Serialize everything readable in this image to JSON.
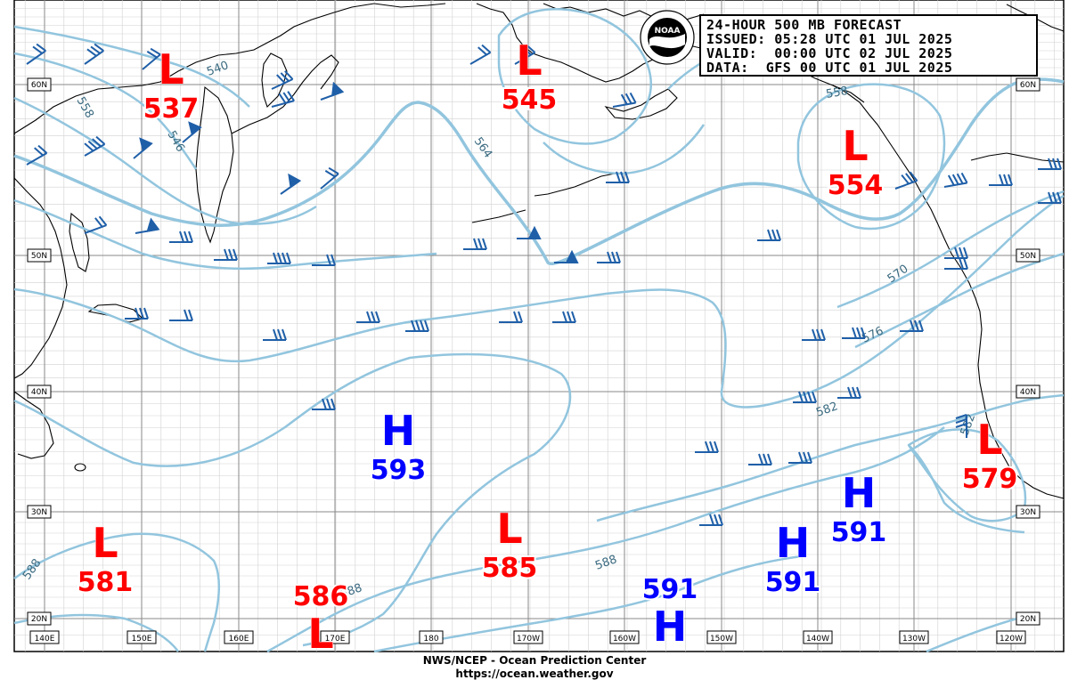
{
  "header": {
    "title": "24-HOUR 500 MB FORECAST",
    "issued": "ISSUED: 05:28 UTC 01 JUL 2025",
    "valid": "VALID:  00:00 UTC 02 JUL 2025",
    "data": "DATA:  GFS 00 UTC 01 JUL 2025"
  },
  "logo": {
    "name": "noaa-logo",
    "text": "NOAA"
  },
  "footer": {
    "org": "NWS/NCEP - Ocean Prediction Center",
    "url": "https://ocean.weather.gov"
  },
  "longitude_labels": [
    "140E",
    "150E",
    "160E",
    "170E",
    "180",
    "170W",
    "160W",
    "150W",
    "140W",
    "130W",
    "120W"
  ],
  "latitude_labels": [
    "60N",
    "50N",
    "40N",
    "30N",
    "20N"
  ],
  "contour_labels": [
    "540",
    "546",
    "558",
    "558",
    "564",
    "570",
    "576",
    "582",
    "582",
    "588",
    "588",
    "588"
  ],
  "pressure_systems": [
    {
      "type": "L",
      "value": "537",
      "color": "#ff0000"
    },
    {
      "type": "L",
      "value": "545",
      "color": "#ff0000"
    },
    {
      "type": "L",
      "value": "554",
      "color": "#ff0000"
    },
    {
      "type": "H",
      "value": "593",
      "color": "#0000ff"
    },
    {
      "type": "L",
      "value": "579",
      "color": "#ff0000"
    },
    {
      "type": "H",
      "value": "591",
      "color": "#0000ff"
    },
    {
      "type": "L",
      "value": "581",
      "color": "#ff0000"
    },
    {
      "type": "L",
      "value": "585",
      "color": "#ff0000"
    },
    {
      "type": "H",
      "value": "591",
      "color": "#0000ff"
    },
    {
      "type": "L",
      "value": "586",
      "color": "#ff0000"
    },
    {
      "type": "H",
      "value": "591",
      "color": "#0000ff"
    }
  ],
  "colors": {
    "contour": "#92c5de",
    "contour_thick": "#92c5de",
    "grid": "#c8c8c8",
    "wind_barb": "#1f5fa8",
    "low": "#ff0000",
    "high": "#0000ff"
  }
}
